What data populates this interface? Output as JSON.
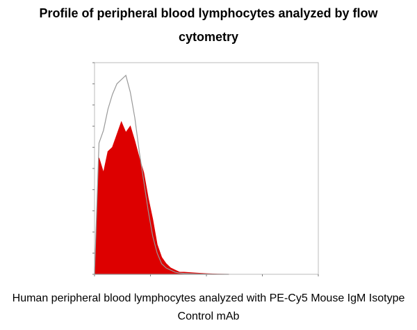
{
  "title": "Profile of peripheral blood lymphocytes analyzed by flow cytometry",
  "caption": "Human peripheral blood lymphocytes analyzed with PE-Cy5 Mouse IgM Isotype Control mAb",
  "colors": {
    "filled": "#dd0000",
    "outline": "#999999",
    "frame": "#bbbbbb"
  },
  "chart_data": {
    "type": "area",
    "xlim": [
      0,
      100
    ],
    "ylim": [
      0,
      100
    ],
    "grid": false,
    "series": [
      {
        "style": "filled",
        "x": [
          0,
          2,
          4,
          6,
          8,
          10,
          12,
          14,
          16,
          18,
          20,
          22,
          24,
          26,
          28,
          30,
          32,
          34,
          36,
          38,
          40,
          45,
          50,
          55,
          60
        ],
        "values": [
          0,
          55,
          48,
          58,
          60,
          66,
          72,
          67,
          70,
          63,
          55,
          48,
          36,
          26,
          14,
          8,
          5,
          3,
          2,
          1,
          1,
          0.6,
          0.3,
          0.1,
          0
        ]
      },
      {
        "style": "outline",
        "x": [
          0,
          2,
          4,
          6,
          8,
          10,
          12,
          14,
          16,
          18,
          20,
          22,
          24,
          26,
          28,
          30,
          32,
          34,
          36,
          38,
          40,
          45,
          50,
          55,
          60
        ],
        "values": [
          0,
          62,
          68,
          78,
          85,
          90,
          92,
          94,
          86,
          74,
          58,
          44,
          30,
          18,
          10,
          5,
          3,
          2,
          1,
          0.6,
          0.4,
          0.2,
          0.1,
          0,
          0
        ]
      }
    ]
  }
}
